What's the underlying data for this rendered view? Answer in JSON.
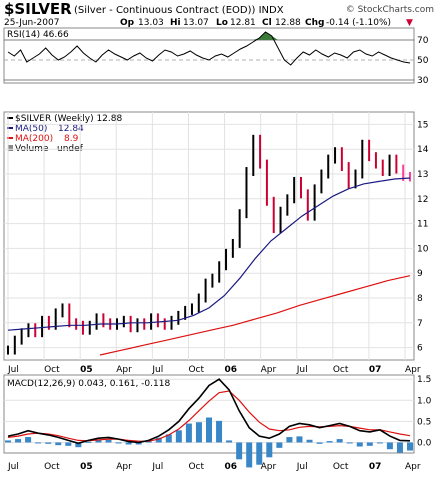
{
  "header": {
    "symbol": "$SILVER",
    "description": "(Silver - Continuous Contract (EOD)) INDX",
    "watermark": "© StockCharts.com",
    "date": "25-Jun-2007",
    "op_label": "Op",
    "op": "13.03",
    "hi_label": "Hi",
    "hi": "13.07",
    "lo_label": "Lo",
    "lo": "12.81",
    "cl_label": "Cl",
    "cl": "12.88",
    "chg_label": "Chg",
    "chg": "-0.14 (-1.10%)",
    "chg_marker": "▼"
  },
  "colors": {
    "price_up": "#000000",
    "price_down": "#cc0033",
    "ma50": "#1a1a80",
    "ma200": "#dd1111",
    "macd_line": "#000000",
    "macd_signal": "#dd1111",
    "macd_hist": "#3a87c8",
    "rsi_fill": "#3c7a3c",
    "recent_highlight": "#ff3fa0"
  },
  "chart_data": [
    {
      "type": "line",
      "panel": "rsi",
      "title": "RSI(14) 46.66",
      "ylim": [
        30,
        70
      ],
      "y_ticks": [
        "70",
        "50",
        "30"
      ],
      "levels": [
        70,
        30
      ],
      "series": [
        {
          "name": "RSI(14)",
          "current": 46.66,
          "values": [
            58,
            54,
            60,
            48,
            52,
            56,
            62,
            55,
            50,
            53,
            58,
            64,
            57,
            52,
            48,
            55,
            60,
            56,
            53,
            50,
            54,
            57,
            52,
            49,
            55,
            60,
            58,
            54,
            56,
            59,
            55,
            52,
            50,
            54,
            56,
            53,
            57,
            61,
            64,
            68,
            72,
            78,
            74,
            62,
            50,
            45,
            52,
            58,
            55,
            60,
            56,
            53,
            57,
            55,
            52,
            58,
            60,
            56,
            54,
            58,
            55,
            52,
            50,
            48,
            47
          ]
        }
      ]
    },
    {
      "type": "line",
      "panel": "price",
      "title": "$SILVER (Weekly) 12.88",
      "ylim": [
        5.5,
        15.5
      ],
      "y_ticks": [
        "6",
        "7",
        "8",
        "9",
        "10",
        "11",
        "12",
        "13",
        "14",
        "15"
      ],
      "x_ticks": [
        "Jul",
        "Oct",
        "05",
        "Apr",
        "Jul",
        "Oct",
        "06",
        "Apr",
        "Jul",
        "Oct",
        "07",
        "Apr"
      ],
      "series": [
        {
          "name": "$SILVER (Weekly)",
          "current": 12.88,
          "values": [
            5.9,
            6.3,
            6.6,
            6.8,
            6.6,
            7.1,
            6.9,
            7.4,
            7.6,
            7.0,
            6.9,
            6.7,
            6.9,
            7.2,
            7.0,
            6.9,
            7.0,
            7.1,
            6.8,
            7.0,
            6.9,
            7.2,
            7.0,
            6.9,
            7.1,
            7.3,
            7.5,
            7.6,
            8.0,
            8.6,
            8.8,
            9.3,
            9.8,
            10.2,
            11.4,
            13.1,
            14.4,
            13.4,
            11.9,
            10.8,
            11.5,
            12.0,
            12.7,
            12.2,
            11.3,
            12.4,
            13.0,
            13.6,
            13.9,
            13.3,
            12.6,
            13.0,
            14.2,
            13.7,
            13.4,
            13.1,
            13.6,
            13.2,
            12.9,
            12.88
          ]
        },
        {
          "name": "MA(50)",
          "current": 12.84,
          "values": [
            6.7,
            6.75,
            6.8,
            6.85,
            6.9,
            6.9,
            6.95,
            6.95,
            7.0,
            7.0,
            7.05,
            7.1,
            7.3,
            7.6,
            8.1,
            8.8,
            9.6,
            10.3,
            10.8,
            11.3,
            11.7,
            12.1,
            12.4,
            12.6,
            12.7,
            12.8,
            12.84
          ]
        },
        {
          "name": "MA(200)",
          "current": 8.9,
          "values": [
            5.7,
            5.9,
            6.1,
            6.3,
            6.5,
            6.7,
            6.9,
            7.15,
            7.4,
            7.7,
            7.95,
            8.2,
            8.45,
            8.7,
            8.9
          ]
        },
        {
          "name": "Volume",
          "current": "undef"
        }
      ]
    },
    {
      "type": "line",
      "panel": "macd",
      "title": "MACD(12,26,9) 0.043, 0.161, -0.118",
      "ylim": [
        -0.25,
        1.6
      ],
      "y_ticks": [
        "1.5",
        "1.0",
        "0.5",
        "0.0"
      ],
      "x_ticks": [
        "Jul",
        "Oct",
        "05",
        "Apr",
        "Jul",
        "Oct",
        "06",
        "Apr",
        "Jul",
        "Oct",
        "07",
        "Apr"
      ],
      "series": [
        {
          "name": "MACD(12,26,9)",
          "current": 0.043,
          "values": [
            0.15,
            0.2,
            0.28,
            0.22,
            0.18,
            0.12,
            0.05,
            -0.02,
            0.05,
            0.1,
            0.12,
            0.08,
            0.02,
            0.0,
            0.05,
            0.15,
            0.3,
            0.5,
            0.8,
            1.05,
            1.35,
            1.5,
            1.25,
            0.75,
            0.35,
            0.15,
            0.1,
            0.2,
            0.38,
            0.45,
            0.42,
            0.35,
            0.4,
            0.45,
            0.38,
            0.28,
            0.25,
            0.3,
            0.15,
            0.05,
            0.04
          ]
        },
        {
          "name": "Signal",
          "current": 0.161,
          "values": [
            0.12,
            0.15,
            0.2,
            0.22,
            0.2,
            0.16,
            0.1,
            0.05,
            0.04,
            0.06,
            0.08,
            0.08,
            0.05,
            0.03,
            0.03,
            0.08,
            0.18,
            0.32,
            0.52,
            0.75,
            0.98,
            1.18,
            1.22,
            1.0,
            0.72,
            0.48,
            0.32,
            0.28,
            0.3,
            0.36,
            0.38,
            0.37,
            0.38,
            0.4,
            0.38,
            0.34,
            0.3,
            0.3,
            0.25,
            0.2,
            0.16
          ]
        },
        {
          "name": "Histogram",
          "current": -0.118
        }
      ]
    }
  ]
}
